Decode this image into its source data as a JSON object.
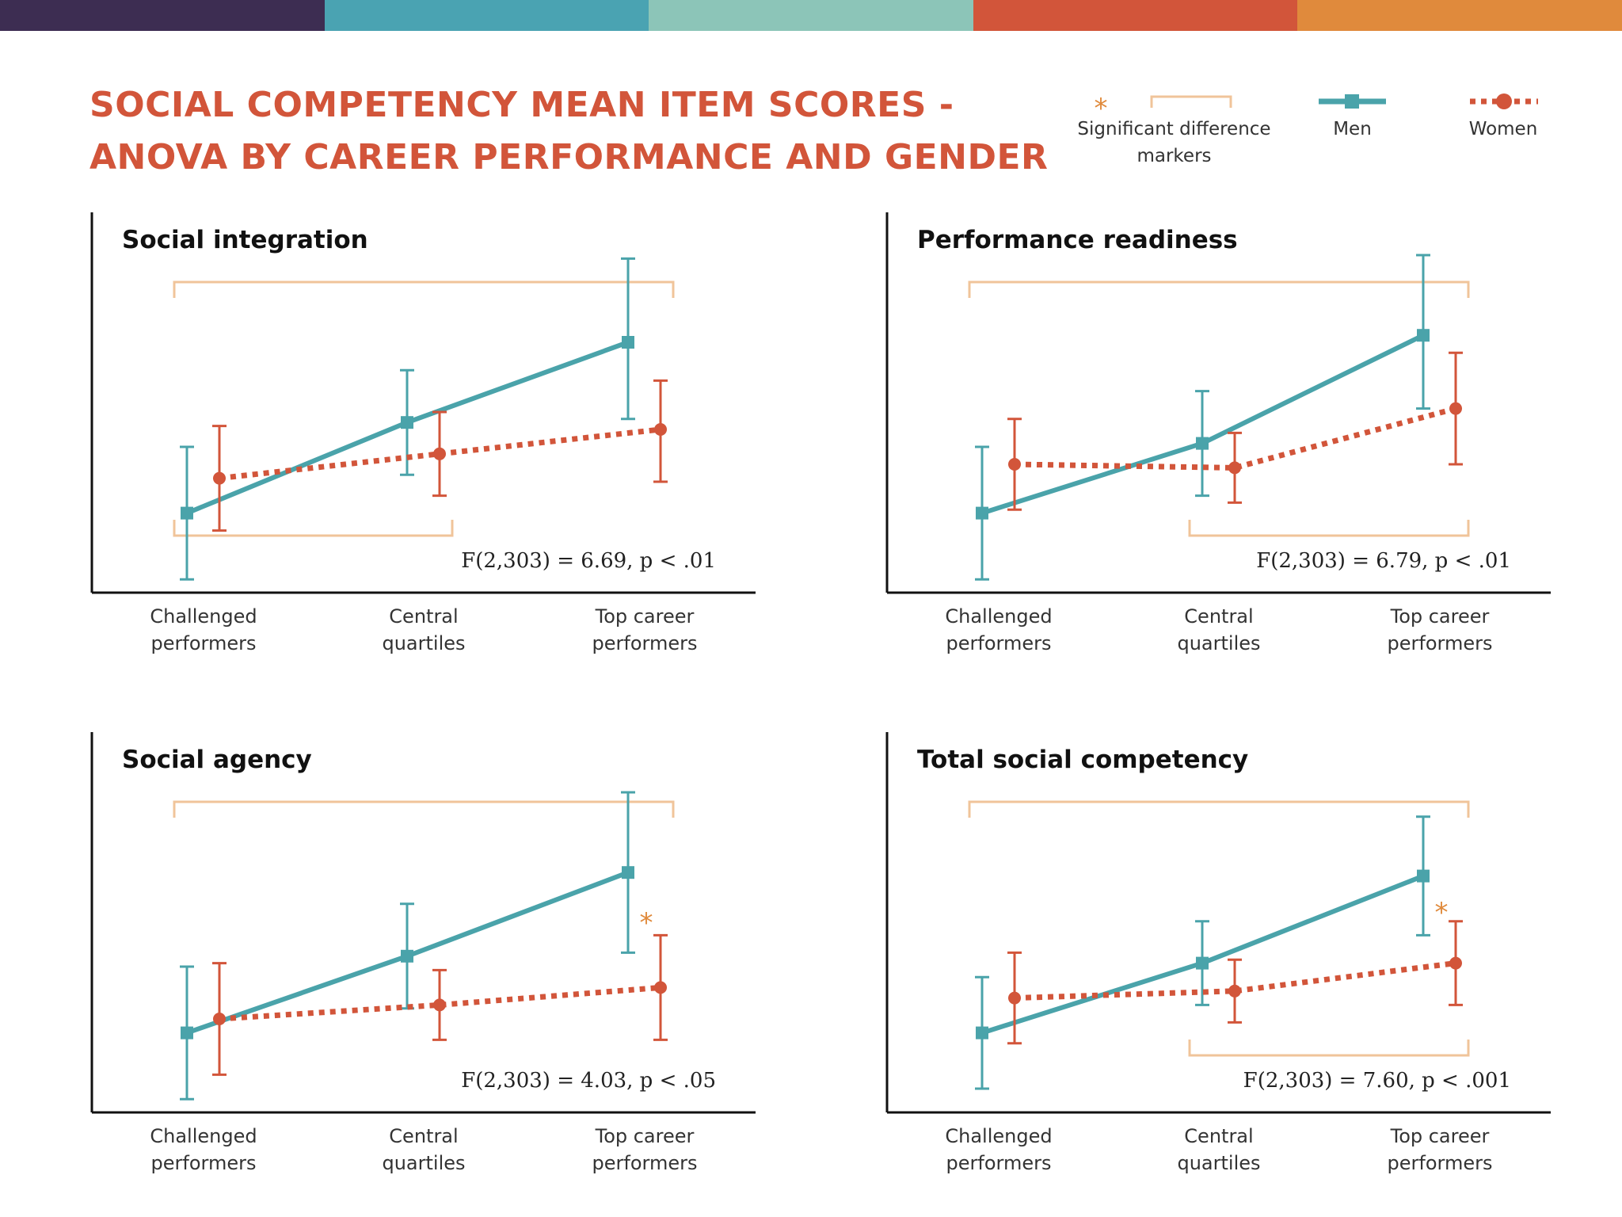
{
  "header": {
    "title_line1": "SOCIAL COMPETENCY MEAN ITEM SCORES -",
    "title_line2": "ANOVA BY CAREER PERFORMANCE AND GENDER",
    "bar_colors": [
      "#3d2d52",
      "#4aa3b2",
      "#8cc5b8",
      "#d2553a",
      "#e08a3c"
    ]
  },
  "legend": {
    "sig_label_line1": "Significant difference",
    "sig_label_line2": "markers",
    "men": "Men",
    "women": "Women"
  },
  "colors": {
    "men": "#4aa3aa",
    "women": "#d2553a",
    "bracket": "#f0c49a",
    "star": "#e08a3c",
    "title": "#d2553a"
  },
  "chart_data": [
    {
      "type": "line",
      "title": "Social integration",
      "stat_text": "F(2,303) = 6.69, p < .01",
      "categories": [
        [
          "Challenged",
          "performers"
        ],
        [
          "Central",
          "quartiles"
        ],
        [
          "Top career",
          "performers"
        ]
      ],
      "series": [
        {
          "name": "Men",
          "values": [
            0.21,
            0.47,
            0.7
          ],
          "err_low": [
            0.02,
            0.32,
            0.48
          ],
          "err_high": [
            0.4,
            0.62,
            0.94
          ]
        },
        {
          "name": "Women",
          "values": [
            0.31,
            0.38,
            0.45
          ],
          "err_low": [
            0.16,
            0.26,
            0.3
          ],
          "err_high": [
            0.46,
            0.5,
            0.59
          ]
        }
      ],
      "ylim": [
        0,
        1
      ],
      "brackets": [
        {
          "from": 0,
          "to": 2,
          "position": "top"
        },
        {
          "from": 0,
          "to": 1,
          "position": "bottom"
        }
      ],
      "stars": []
    },
    {
      "type": "line",
      "title": "Performance readiness",
      "stat_text": "F(2,303) = 6.79, p < .01",
      "categories": [
        [
          "Challenged",
          "performers"
        ],
        [
          "Central",
          "quartiles"
        ],
        [
          "Top career",
          "performers"
        ]
      ],
      "series": [
        {
          "name": "Men",
          "values": [
            0.21,
            0.41,
            0.72
          ],
          "err_low": [
            0.02,
            0.26,
            0.51
          ],
          "err_high": [
            0.4,
            0.56,
            0.95
          ]
        },
        {
          "name": "Women",
          "values": [
            0.35,
            0.34,
            0.51
          ],
          "err_low": [
            0.22,
            0.24,
            0.35
          ],
          "err_high": [
            0.48,
            0.44,
            0.67
          ]
        }
      ],
      "ylim": [
        0,
        1
      ],
      "brackets": [
        {
          "from": 0,
          "to": 2,
          "position": "top"
        },
        {
          "from": 1,
          "to": 2,
          "position": "bottom"
        }
      ],
      "stars": []
    },
    {
      "type": "line",
      "title": "Social agency",
      "stat_text": "F(2,303) = 4.03, p < .05",
      "categories": [
        [
          "Challenged",
          "performers"
        ],
        [
          "Central",
          "quartiles"
        ],
        [
          "Top career",
          "performers"
        ]
      ],
      "series": [
        {
          "name": "Men",
          "values": [
            0.21,
            0.43,
            0.67
          ],
          "err_low": [
            0.02,
            0.28,
            0.44
          ],
          "err_high": [
            0.4,
            0.58,
            0.9
          ]
        },
        {
          "name": "Women",
          "values": [
            0.25,
            0.29,
            0.34
          ],
          "err_low": [
            0.09,
            0.19,
            0.19
          ],
          "err_high": [
            0.41,
            0.39,
            0.49
          ]
        }
      ],
      "ylim": [
        0,
        1
      ],
      "brackets": [
        {
          "from": 0,
          "to": 2,
          "position": "top"
        }
      ],
      "stars": [
        {
          "category": 2,
          "value": 0.55
        }
      ]
    },
    {
      "type": "line",
      "title": "Total social competency",
      "stat_text": "F(2,303) = 7.60, p < .001",
      "categories": [
        [
          "Challenged",
          "performers"
        ],
        [
          "Central",
          "quartiles"
        ],
        [
          "Top career",
          "performers"
        ]
      ],
      "series": [
        {
          "name": "Men",
          "values": [
            0.21,
            0.41,
            0.66
          ],
          "err_low": [
            0.05,
            0.29,
            0.49
          ],
          "err_high": [
            0.37,
            0.53,
            0.83
          ]
        },
        {
          "name": "Women",
          "values": [
            0.31,
            0.33,
            0.41
          ],
          "err_low": [
            0.18,
            0.24,
            0.29
          ],
          "err_high": [
            0.44,
            0.42,
            0.53
          ]
        }
      ],
      "ylim": [
        0,
        1
      ],
      "brackets": [
        {
          "from": 0,
          "to": 2,
          "position": "top"
        },
        {
          "from": 1,
          "to": 2,
          "position": "bottom"
        }
      ],
      "stars": [
        {
          "category": 2,
          "value": 0.58
        }
      ]
    }
  ]
}
